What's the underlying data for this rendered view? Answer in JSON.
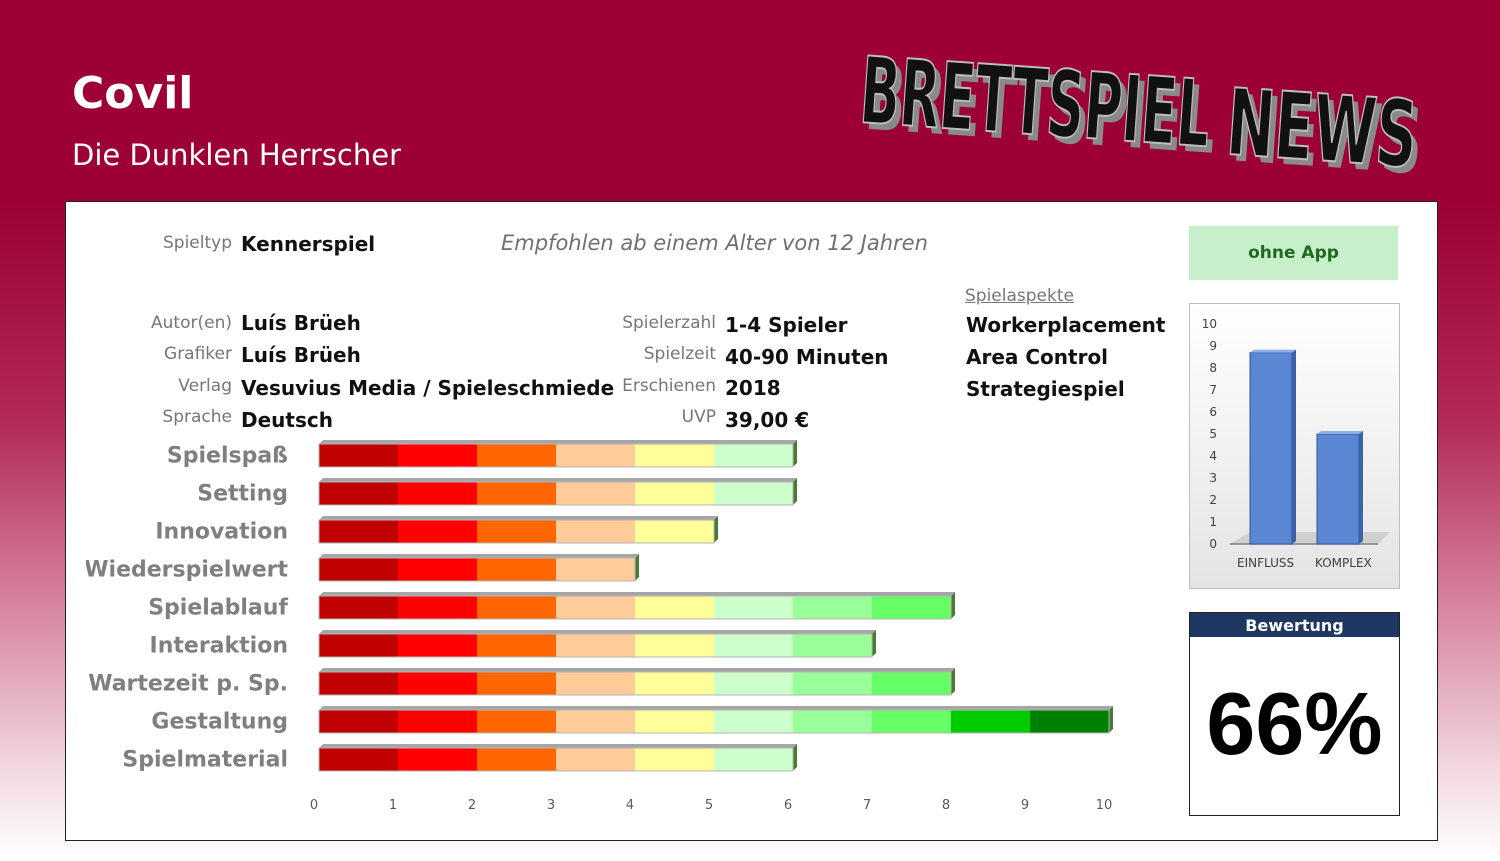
{
  "game": {
    "title": "Covil",
    "subtitle": "Die Dunklen Herrscher"
  },
  "logo": {
    "text_left": "BRETTSPIEL",
    "text_right": "NEWS"
  },
  "info": {
    "spieltyp": {
      "label": "Spieltyp",
      "value": "Kennerspiel"
    },
    "age": "Empfohlen ab einem Alter von 12 Jahren",
    "autor": {
      "label": "Autor(en)",
      "value": "Luís Brüeh"
    },
    "grafiker": {
      "label": "Grafiker",
      "value": "Luís Brüeh"
    },
    "verlag": {
      "label": "Verlag",
      "value": "Vesuvius Media / Spieleschmiede"
    },
    "sprache": {
      "label": "Sprache",
      "value": "Deutsch"
    },
    "spielerzahl": {
      "label": "Spielerzahl",
      "value": "1-4 Spieler"
    },
    "spielzeit": {
      "label": "Spielzeit",
      "value": "40-90 Minuten"
    },
    "erschienen": {
      "label": "Erschienen",
      "value": "2018"
    },
    "uvp": {
      "label": "UVP",
      "value": "39,00 €"
    }
  },
  "aspects": {
    "heading": "Spielaspekte",
    "items": [
      "Workerplacement",
      "Area Control",
      "Strategiespiel"
    ]
  },
  "app_badge": "ohne App",
  "score": {
    "label": "Bewertung",
    "value": "66%"
  },
  "chart_data": [
    {
      "type": "bar",
      "orientation": "horizontal",
      "categories": [
        "Spielspaß",
        "Setting",
        "Innovation",
        "Wiederspielwert",
        "Spielablauf",
        "Interaktion",
        "Wartezeit p. Sp.",
        "Gestaltung",
        "Spielmaterial"
      ],
      "values": [
        6,
        6,
        5,
        4,
        8,
        7,
        8,
        10,
        6
      ],
      "xlim": [
        0,
        10
      ],
      "xticks": [
        0,
        1,
        2,
        3,
        4,
        5,
        6,
        7,
        8,
        9,
        10
      ],
      "segment_colors": [
        "#c00000",
        "#ff0000",
        "#ff6600",
        "#ffcc99",
        "#ffff99",
        "#ccffcc",
        "#99ff99",
        "#66ff66",
        "#00cc00",
        "#008000"
      ],
      "grid": false
    },
    {
      "type": "bar",
      "categories": [
        "EINFLUSS",
        "KOMPLEX"
      ],
      "values": [
        8.7,
        5
      ],
      "ylim": [
        0,
        10
      ],
      "yticks": [
        0,
        1,
        2,
        3,
        4,
        5,
        6,
        7,
        8,
        9,
        10
      ],
      "bar_color": "#5b86d4",
      "grid": false
    }
  ]
}
